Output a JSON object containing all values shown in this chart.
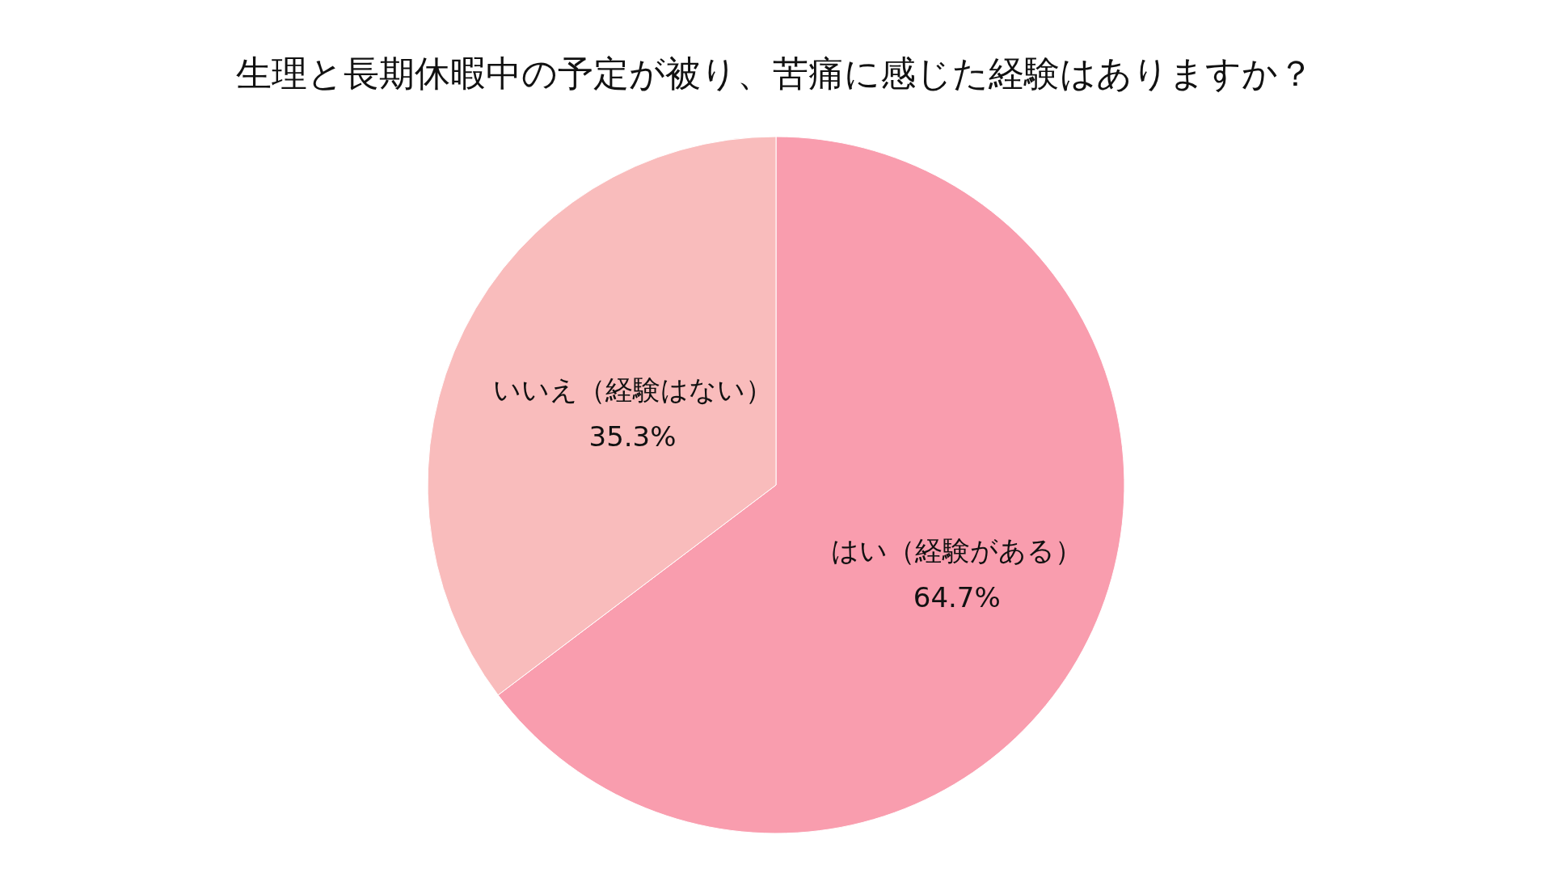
{
  "chart_data": {
    "type": "pie",
    "title": "生理と長期休暇中の予定が被り、苦痛に感じた経験はありますか？",
    "categories": [
      "はい（経験がある）",
      "いいえ（経験はない）"
    ],
    "values": [
      64.7,
      35.3
    ],
    "value_labels": [
      "64.7%",
      "35.3%"
    ],
    "colors": [
      "#f99dae",
      "#f9bcbc"
    ]
  }
}
